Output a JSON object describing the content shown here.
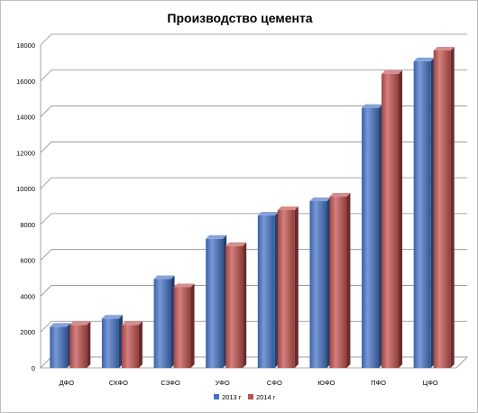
{
  "chart_data": {
    "type": "bar",
    "title": "Производство цемента",
    "xlabel": "",
    "ylabel": "",
    "ylim": [
      0,
      18000
    ],
    "yticks": [
      0,
      2000,
      4000,
      6000,
      8000,
      10000,
      12000,
      14000,
      16000,
      18000
    ],
    "grid": true,
    "legend_position": "bottom",
    "categories": [
      "ДФО",
      "СКФО",
      "СЗФО",
      "УФО",
      "СФО",
      "ЮФО",
      "ПФО",
      "ЦФО"
    ],
    "series": [
      {
        "name": "2013 г",
        "color": "#4472c4",
        "values": [
          2300,
          2750,
          4950,
          7200,
          8500,
          9300,
          14500,
          17100
        ]
      },
      {
        "name": "2014 г",
        "color": "#c0504d",
        "values": [
          2400,
          2400,
          4500,
          6800,
          8800,
          9550,
          16400,
          17700
        ]
      }
    ]
  }
}
